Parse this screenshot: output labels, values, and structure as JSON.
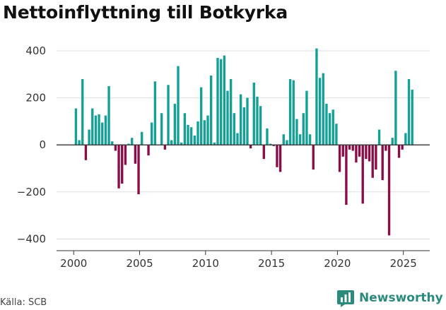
{
  "title": "Nettoinflyttning till Botkyrka",
  "source": "Källa: SCB",
  "brand": {
    "name": "Newsworthy"
  },
  "colors": {
    "positive": "#12a097",
    "negative": "#8b0c47",
    "grid": "#dddddd",
    "zero": "#333333",
    "brand": "#2a8a7e"
  },
  "chart_data": {
    "type": "bar",
    "xlabel": "",
    "ylabel": "",
    "xlim": [
      1998.7,
      2027.0
    ],
    "ylim": [
      -450,
      430
    ],
    "yticks": [
      400,
      200,
      0,
      -200,
      -400
    ],
    "ytick_labels": [
      "400",
      "200",
      "0",
      "−200",
      "−400"
    ],
    "xticks": [
      2000,
      2005,
      2010,
      2015,
      2020,
      2025
    ],
    "xtick_labels": [
      "2000",
      "2005",
      "2010",
      "2015",
      "2020",
      "2025"
    ],
    "grid": true,
    "x": [
      2000.17,
      2000.42,
      2000.67,
      2000.92,
      2001.17,
      2001.42,
      2001.67,
      2001.92,
      2002.17,
      2002.42,
      2002.67,
      2002.92,
      2003.17,
      2003.42,
      2003.67,
      2003.92,
      2004.17,
      2004.42,
      2004.67,
      2004.92,
      2005.17,
      2005.42,
      2005.67,
      2005.92,
      2006.17,
      2006.42,
      2006.67,
      2006.92,
      2007.17,
      2007.42,
      2007.67,
      2007.92,
      2008.17,
      2008.42,
      2008.67,
      2008.92,
      2009.17,
      2009.42,
      2009.67,
      2009.92,
      2010.17,
      2010.42,
      2010.67,
      2010.92,
      2011.17,
      2011.42,
      2011.67,
      2011.92,
      2012.17,
      2012.42,
      2012.67,
      2012.92,
      2013.17,
      2013.42,
      2013.67,
      2013.92,
      2014.17,
      2014.42,
      2014.67,
      2014.92,
      2015.17,
      2015.42,
      2015.67,
      2015.92,
      2016.17,
      2016.42,
      2016.67,
      2016.92,
      2017.17,
      2017.42,
      2017.67,
      2017.92,
      2018.17,
      2018.42,
      2018.67,
      2018.92,
      2019.17,
      2019.42,
      2019.67,
      2019.92,
      2020.17,
      2020.42,
      2020.67,
      2020.92,
      2021.17,
      2021.42,
      2021.67,
      2021.92,
      2022.17,
      2022.42,
      2022.67,
      2022.92,
      2023.17,
      2023.42,
      2023.67,
      2023.92,
      2024.17,
      2024.42,
      2024.67,
      2024.92,
      2025.17,
      2025.42,
      2025.67,
      2025.92
    ],
    "values": [
      155,
      20,
      280,
      -65,
      65,
      155,
      125,
      130,
      95,
      125,
      250,
      15,
      -25,
      -185,
      -165,
      -85,
      5,
      30,
      -80,
      -210,
      55,
      0,
      -45,
      95,
      270,
      0,
      135,
      -20,
      255,
      20,
      175,
      335,
      10,
      135,
      85,
      75,
      40,
      100,
      245,
      105,
      125,
      295,
      10,
      370,
      365,
      380,
      230,
      280,
      135,
      50,
      215,
      160,
      200,
      -15,
      265,
      205,
      165,
      -60,
      70,
      5,
      -5,
      -95,
      -115,
      45,
      20,
      280,
      275,
      110,
      45,
      135,
      230,
      45,
      -105,
      410,
      285,
      305,
      175,
      135,
      150,
      90,
      -115,
      -50,
      -255,
      -20,
      -25,
      -75,
      -50,
      -250,
      -60,
      -70,
      -140,
      -105,
      65,
      -150,
      -25,
      -385,
      30,
      315,
      -55,
      -20,
      50,
      280,
      235,
      0
    ]
  }
}
